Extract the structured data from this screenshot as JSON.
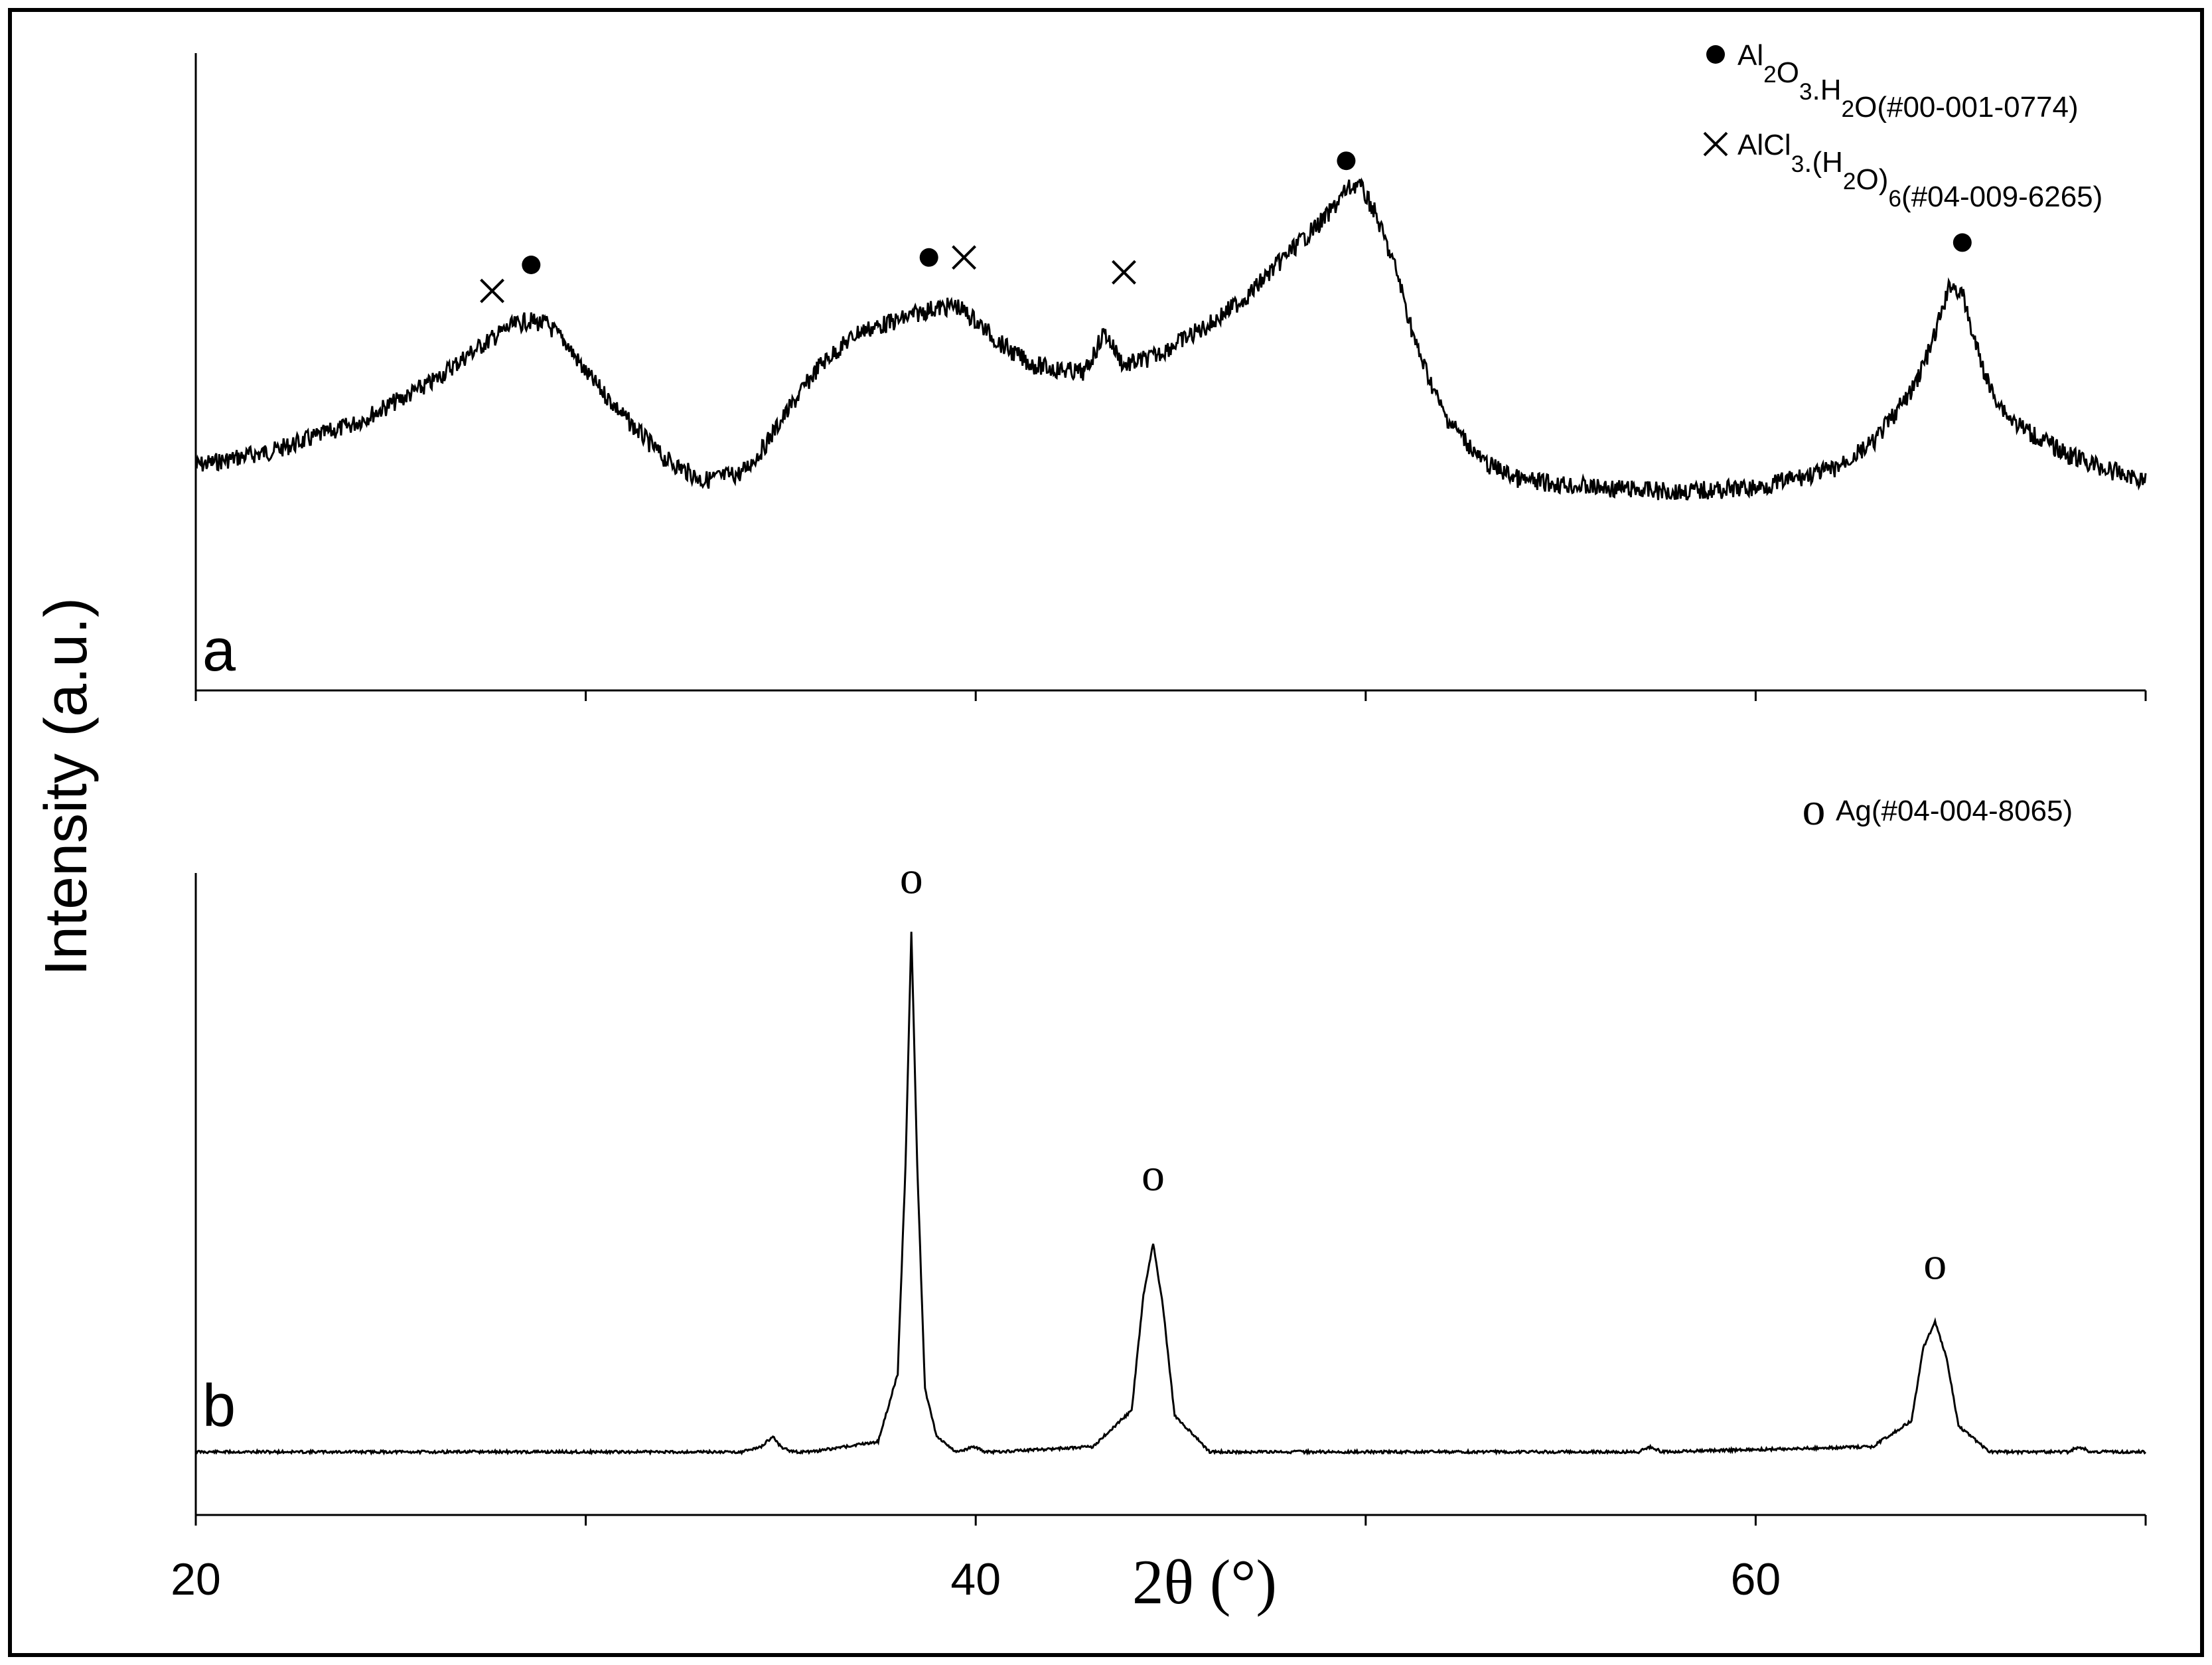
{
  "figure": {
    "ylabel": "Intensity (a.u.)",
    "xlabel": "2θ (°)"
  },
  "chart_data": [
    {
      "type": "line",
      "panel_label": "a",
      "xlim": [
        20,
        70
      ],
      "x_ticks": [
        20,
        30,
        40,
        50,
        60,
        70
      ],
      "x_tick_labels": [
        "20",
        "40",
        "60"
      ],
      "grid": false,
      "y_scale": "arbitrary units",
      "series": [
        {
          "x": [
            20,
            22,
            24,
            26,
            27,
            28,
            28.5,
            29,
            29.5,
            30,
            31,
            32,
            33,
            34,
            34.5,
            35,
            36,
            37,
            38,
            38.8,
            39.5,
            40,
            40.5,
            41,
            41.5,
            42,
            42.8,
            43.3,
            43.8,
            44.5,
            45,
            46,
            47,
            48,
            49,
            49.5,
            49.8,
            50.2,
            50.8,
            51.3,
            52,
            53,
            54,
            56,
            58,
            60,
            62,
            63,
            64,
            64.5,
            65,
            65.3,
            65.6,
            66,
            66.5,
            67,
            68,
            69,
            70
          ],
          "y": [
            0.06,
            0.1,
            0.17,
            0.28,
            0.36,
            0.43,
            0.45,
            0.44,
            0.39,
            0.31,
            0.19,
            0.08,
            0.02,
            0.04,
            0.1,
            0.18,
            0.33,
            0.42,
            0.45,
            0.48,
            0.49,
            0.45,
            0.4,
            0.36,
            0.33,
            0.32,
            0.31,
            0.42,
            0.33,
            0.35,
            0.38,
            0.44,
            0.52,
            0.63,
            0.73,
            0.8,
            0.82,
            0.75,
            0.58,
            0.38,
            0.2,
            0.07,
            0.02,
            0.0,
            -0.01,
            0.0,
            0.05,
            0.12,
            0.26,
            0.38,
            0.55,
            0.52,
            0.4,
            0.27,
            0.19,
            0.15,
            0.09,
            0.05,
            0.02
          ]
        }
      ],
      "peak_markers": [
        {
          "symbol": "x",
          "phase": "AlCl3.(H2O)6",
          "x": 27.6,
          "y": 0.53
        },
        {
          "symbol": "dot",
          "phase": "Al2O3.H2O",
          "x": 28.6,
          "y": 0.6
        },
        {
          "symbol": "dot",
          "phase": "Al2O3.H2O",
          "x": 38.8,
          "y": 0.62
        },
        {
          "symbol": "x",
          "phase": "AlCl3.(H2O)6",
          "x": 39.7,
          "y": 0.62
        },
        {
          "symbol": "x",
          "phase": "AlCl3.(H2O)6",
          "x": 43.8,
          "y": 0.58
        },
        {
          "symbol": "dot",
          "phase": "Al2O3.H2O",
          "x": 49.5,
          "y": 0.88
        },
        {
          "symbol": "dot",
          "phase": "Al2O3.H2O",
          "x": 65.3,
          "y": 0.66
        }
      ],
      "legend": {
        "placement": "top-right",
        "entries": [
          {
            "symbol": "dot",
            "parts": [
              {
                "t": "Al"
              },
              {
                "t": "2",
                "sub": true
              },
              {
                "t": "O"
              },
              {
                "t": "3",
                "sub": true
              },
              {
                "t": ".H"
              },
              {
                "t": "2",
                "sub": true
              },
              {
                "t": "O(#00-001-0774)"
              }
            ]
          },
          {
            "symbol": "x",
            "parts": [
              {
                "t": "AlCl"
              },
              {
                "t": "3",
                "sub": true
              },
              {
                "t": ".(H"
              },
              {
                "t": "2",
                "sub": true
              },
              {
                "t": "O)"
              },
              {
                "t": "6",
                "sub": true
              },
              {
                "t": "(#04-009-6265)"
              }
            ]
          }
        ]
      }
    },
    {
      "type": "line",
      "panel_label": "b",
      "xlim": [
        20,
        70
      ],
      "x_ticks": [
        20,
        30,
        40,
        50,
        60,
        70
      ],
      "x_tick_labels": [
        "20",
        "40",
        "60"
      ],
      "grid": false,
      "y_scale": "arbitrary units",
      "series": [
        {
          "x": [
            20,
            30,
            34,
            34.5,
            34.8,
            35,
            35.3,
            35.8,
            37.5,
            38.0,
            38.2,
            38.35,
            38.5,
            38.7,
            39.0,
            39.5,
            40.0,
            40.2,
            40.5,
            43.0,
            44.0,
            44.3,
            44.55,
            44.8,
            45.1,
            46.0,
            57.0,
            57.3,
            57.6,
            63.0,
            64.0,
            64.3,
            64.6,
            64.9,
            65.2,
            66.0,
            68.0,
            68.3,
            68.6,
            70
          ],
          "y": [
            0.0,
            0.0,
            0.0,
            0.01,
            0.03,
            0.01,
            0.0,
            0.0,
            0.02,
            0.15,
            0.55,
            1.0,
            0.55,
            0.12,
            0.03,
            0.0,
            0.01,
            0.0,
            0.0,
            0.01,
            0.08,
            0.3,
            0.4,
            0.28,
            0.07,
            0.0,
            0.0,
            0.01,
            0.0,
            0.01,
            0.06,
            0.2,
            0.25,
            0.18,
            0.05,
            0.0,
            0.0,
            0.01,
            0.0,
            0.0
          ]
        }
      ],
      "peak_markers": [
        {
          "symbol": "o",
          "phase": "Ag",
          "x": 38.35,
          "y": 1.1
        },
        {
          "symbol": "o",
          "phase": "Ag",
          "x": 44.55,
          "y": 0.53
        },
        {
          "symbol": "o",
          "phase": "Ag",
          "x": 64.6,
          "y": 0.36
        }
      ],
      "legend": {
        "placement": "top-right",
        "entries": [
          {
            "symbol": "o",
            "parts": [
              {
                "t": "Ag(#04-004-8065)"
              }
            ]
          }
        ]
      }
    }
  ],
  "style": {
    "line_color": "#000000",
    "background": "#ffffff"
  }
}
